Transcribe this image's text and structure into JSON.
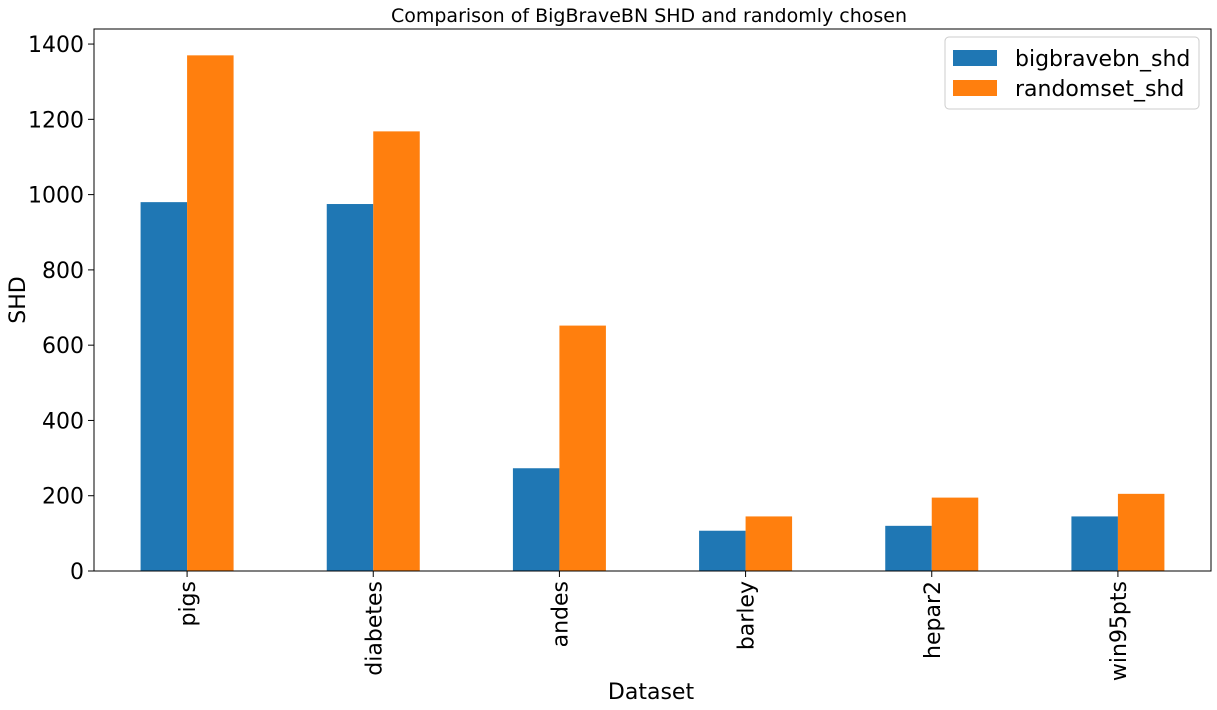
{
  "chart_data": {
    "type": "bar",
    "title": "Comparison of BigBraveBN SHD and randomly chosen",
    "xlabel": "Dataset",
    "ylabel": "SHD",
    "categories": [
      "pigs",
      "diabetes",
      "andes",
      "barley",
      "hepar2",
      "win95pts"
    ],
    "series": [
      {
        "name": "bigbravebn_shd",
        "color": "#1f77b4",
        "values": [
          980,
          975,
          273,
          107,
          120,
          145
        ]
      },
      {
        "name": "randomset_shd",
        "color": "#ff7f0e",
        "values": [
          1370,
          1168,
          652,
          145,
          195,
          205
        ]
      }
    ],
    "ylim": [
      0,
      1440
    ],
    "yticks": [
      0,
      200,
      400,
      600,
      800,
      1000,
      1200,
      1400
    ],
    "legend_position": "top-right",
    "grid": false
  }
}
